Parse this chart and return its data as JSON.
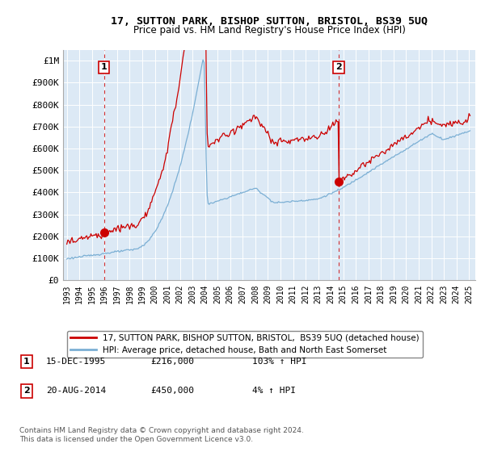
{
  "title": "17, SUTTON PARK, BISHOP SUTTON, BRISTOL, BS39 5UQ",
  "subtitle": "Price paid vs. HM Land Registry's House Price Index (HPI)",
  "red_line_color": "#cc0000",
  "blue_line_color": "#7bafd4",
  "plot_bg_color": "#dce9f5",
  "background_color": "#ffffff",
  "grid_color": "#ffffff",
  "ylim": [
    0,
    1050000
  ],
  "xlim_start": 1992.7,
  "xlim_end": 2025.5,
  "yticks": [
    0,
    100000,
    200000,
    300000,
    400000,
    500000,
    600000,
    700000,
    800000,
    900000,
    1000000
  ],
  "ytick_labels": [
    "£0",
    "£100K",
    "£200K",
    "£300K",
    "£400K",
    "£500K",
    "£600K",
    "£700K",
    "£800K",
    "£900K",
    "£1M"
  ],
  "xtick_years": [
    1993,
    1994,
    1995,
    1996,
    1997,
    1998,
    1999,
    2000,
    2001,
    2002,
    2003,
    2004,
    2005,
    2006,
    2007,
    2008,
    2009,
    2010,
    2011,
    2012,
    2013,
    2014,
    2015,
    2016,
    2017,
    2018,
    2019,
    2020,
    2021,
    2022,
    2023,
    2024,
    2025
  ],
  "sale1_x": 1995.96,
  "sale1_y": 216000,
  "sale1_label": "1",
  "sale2_x": 2014.63,
  "sale2_y": 450000,
  "sale2_label": "2",
  "legend_entry1": "17, SUTTON PARK, BISHOP SUTTON, BRISTOL,  BS39 5UQ (detached house)",
  "legend_entry2": "HPI: Average price, detached house, Bath and North East Somerset",
  "annotation1_date": "15-DEC-1995",
  "annotation1_price": "£216,000",
  "annotation1_hpi": "103% ↑ HPI",
  "annotation2_date": "20-AUG-2014",
  "annotation2_price": "£450,000",
  "annotation2_hpi": "4% ↑ HPI",
  "footer": "Contains HM Land Registry data © Crown copyright and database right 2024.\nThis data is licensed under the Open Government Licence v3.0.",
  "dashed_line_color": "#cc0000",
  "marker_color": "#cc0000"
}
